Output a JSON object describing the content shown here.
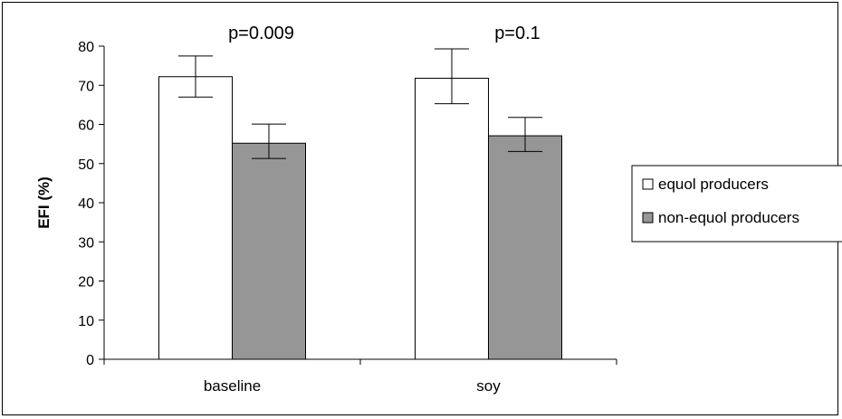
{
  "chart_data": {
    "type": "bar",
    "categories": [
      "baseline",
      "soy"
    ],
    "series": [
      {
        "name": "equol producers",
        "color": "#ffffff",
        "values": [
          72.2,
          71.8
        ],
        "error_low": [
          67.0,
          65.3
        ],
        "error_high": [
          77.5,
          79.3
        ]
      },
      {
        "name": "non-equol producers",
        "color": "#969696",
        "values": [
          55.2,
          57.1
        ],
        "error_low": [
          51.3,
          53.1
        ],
        "error_high": [
          60.1,
          61.8
        ]
      }
    ],
    "annotations": [
      "p=0.009",
      "p=0.1"
    ],
    "title": "",
    "xlabel": "",
    "ylabel": "EFI (%)",
    "ylim": [
      0,
      80
    ],
    "yticks": [
      0,
      10,
      20,
      30,
      40,
      50,
      60,
      70,
      80
    ],
    "grid": false,
    "legend_position": "right"
  }
}
